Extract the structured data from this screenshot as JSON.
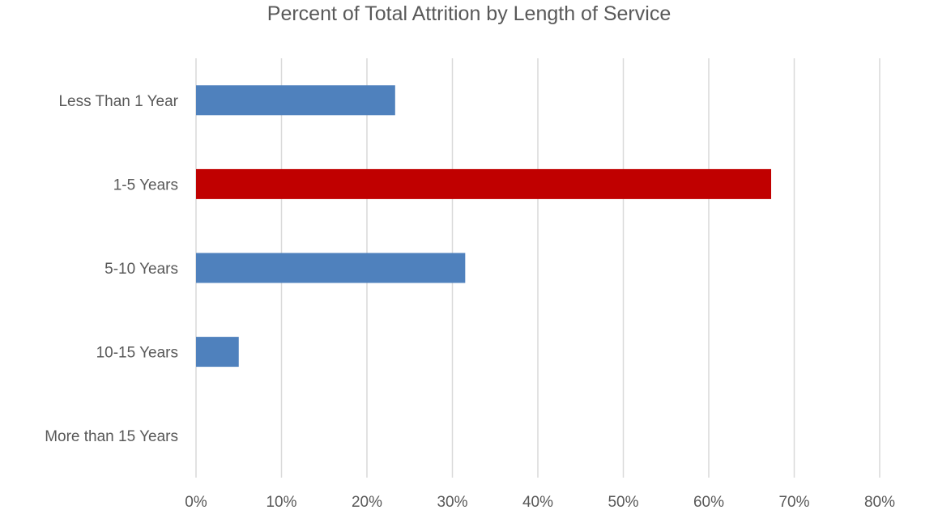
{
  "chart_data": {
    "type": "bar",
    "orientation": "horizontal",
    "title": "Percent of Total Attrition by Length of Service",
    "categories": [
      "Less Than 1 Year",
      "1-5 Years",
      "5-10 Years",
      "10-15 Years",
      "More than 15 Years"
    ],
    "values": [
      23.3,
      67.3,
      31.5,
      5.0,
      0
    ],
    "bar_colors": [
      "#4f81bd",
      "#c00000",
      "#4f81bd",
      "#4f81bd",
      "#4f81bd"
    ],
    "xlim": [
      0,
      80
    ],
    "x_ticks": [
      0,
      10,
      20,
      30,
      40,
      50,
      60,
      70,
      80
    ],
    "x_tick_labels": [
      "0%",
      "10%",
      "20%",
      "30%",
      "40%",
      "50%",
      "60%",
      "70%",
      "80%"
    ],
    "grid": "vertical",
    "gridline_color": "#d9d9d9",
    "legend": "none"
  }
}
